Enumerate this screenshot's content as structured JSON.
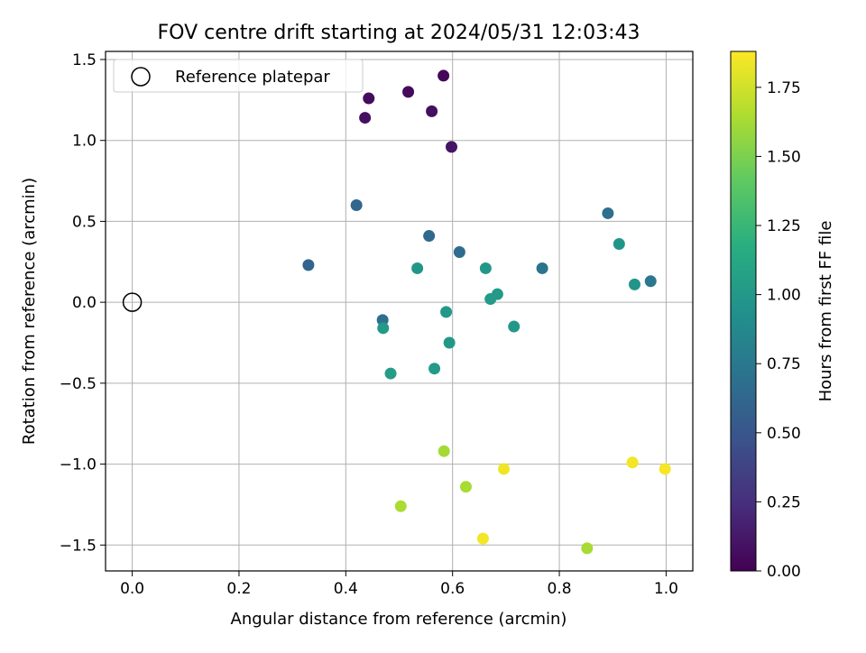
{
  "chart_data": {
    "type": "scatter",
    "title": "FOV centre drift starting at 2024/05/31 12:03:43",
    "xlabel": "Angular distance from reference (arcmin)",
    "ylabel": "Rotation from reference (arcmin)",
    "xlim": [
      -0.05,
      1.05
    ],
    "ylim": [
      -1.66,
      1.55
    ],
    "xticks": [
      0.0,
      0.2,
      0.4,
      0.6,
      0.8,
      1.0
    ],
    "xtick_labels": [
      "0.0",
      "0.2",
      "0.4",
      "0.6",
      "0.8",
      "1.0"
    ],
    "yticks": [
      1.5,
      1.0,
      0.5,
      0.0,
      -0.5,
      -1.0,
      -1.5
    ],
    "ytick_labels": [
      "1.5",
      "1.0",
      "0.5",
      "0.0",
      "−0.5",
      "−1.0",
      "−1.5"
    ],
    "grid": true,
    "legend": {
      "position": "top-left",
      "entries": [
        "Reference platepar"
      ]
    },
    "reference": {
      "x": 0.0,
      "y": 0.0
    },
    "colorbar": {
      "label": "Hours from first FF file",
      "colormap": "viridis",
      "range": [
        0,
        1.88
      ],
      "ticks": [
        0.0,
        0.25,
        0.5,
        0.75,
        1.0,
        1.25,
        1.5,
        1.75
      ],
      "tick_labels": [
        "0.00",
        "0.25",
        "0.50",
        "0.75",
        "1.00",
        "1.25",
        "1.50",
        "1.75"
      ]
    },
    "points": [
      {
        "x": 0.583,
        "y": 1.4,
        "c": 0.03
      },
      {
        "x": 0.517,
        "y": 1.3,
        "c": 0.05
      },
      {
        "x": 0.443,
        "y": 1.26,
        "c": 0.06
      },
      {
        "x": 0.561,
        "y": 1.18,
        "c": 0.07
      },
      {
        "x": 0.436,
        "y": 1.14,
        "c": 0.08
      },
      {
        "x": 0.598,
        "y": 0.96,
        "c": 0.1
      },
      {
        "x": 0.42,
        "y": 0.6,
        "c": 0.62
      },
      {
        "x": 0.891,
        "y": 0.55,
        "c": 0.68
      },
      {
        "x": 0.556,
        "y": 0.41,
        "c": 0.64
      },
      {
        "x": 0.613,
        "y": 0.31,
        "c": 0.66
      },
      {
        "x": 0.33,
        "y": 0.23,
        "c": 0.6
      },
      {
        "x": 0.768,
        "y": 0.21,
        "c": 0.72
      },
      {
        "x": 0.971,
        "y": 0.13,
        "c": 0.74
      },
      {
        "x": 0.469,
        "y": -0.11,
        "c": 0.68
      },
      {
        "x": 0.912,
        "y": 0.36,
        "c": 0.97
      },
      {
        "x": 0.534,
        "y": 0.21,
        "c": 0.99
      },
      {
        "x": 0.662,
        "y": 0.21,
        "c": 0.99
      },
      {
        "x": 0.941,
        "y": 0.11,
        "c": 0.97
      },
      {
        "x": 0.684,
        "y": 0.05,
        "c": 1.01
      },
      {
        "x": 0.671,
        "y": 0.02,
        "c": 1.02
      },
      {
        "x": 0.588,
        "y": -0.06,
        "c": 1.0
      },
      {
        "x": 0.715,
        "y": -0.15,
        "c": 1.0
      },
      {
        "x": 0.47,
        "y": -0.16,
        "c": 1.01
      },
      {
        "x": 0.594,
        "y": -0.25,
        "c": 1.0
      },
      {
        "x": 0.566,
        "y": -0.41,
        "c": 1.02
      },
      {
        "x": 0.484,
        "y": -0.44,
        "c": 1.03
      },
      {
        "x": 0.584,
        "y": -0.92,
        "c": 1.62
      },
      {
        "x": 0.625,
        "y": -1.14,
        "c": 1.63
      },
      {
        "x": 0.503,
        "y": -1.26,
        "c": 1.64
      },
      {
        "x": 0.852,
        "y": -1.52,
        "c": 1.63
      },
      {
        "x": 0.696,
        "y": -1.03,
        "c": 1.84
      },
      {
        "x": 0.937,
        "y": -0.99,
        "c": 1.85
      },
      {
        "x": 0.998,
        "y": -1.03,
        "c": 1.86
      },
      {
        "x": 0.657,
        "y": -1.46,
        "c": 1.85
      }
    ]
  }
}
